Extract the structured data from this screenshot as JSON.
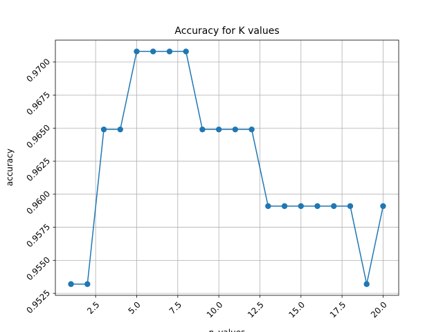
{
  "chart_data": {
    "type": "line",
    "title": "Accuracy for K values",
    "xlabel": "n_values",
    "ylabel": "accuracy",
    "x": [
      1,
      2,
      3,
      4,
      5,
      6,
      7,
      8,
      9,
      10,
      11,
      12,
      13,
      14,
      15,
      16,
      17,
      18,
      19,
      20
    ],
    "series": [
      {
        "values": [
          0.9532,
          0.9532,
          0.9649,
          0.9649,
          0.9708,
          0.9708,
          0.9708,
          0.9708,
          0.9649,
          0.9649,
          0.9649,
          0.9649,
          0.9591,
          0.9591,
          0.9591,
          0.9591,
          0.9591,
          0.9591,
          0.9532,
          0.9591
        ],
        "color": "#1f77b4",
        "marker": "circle"
      }
    ],
    "xticks": [
      2.5,
      5.0,
      7.5,
      10.0,
      12.5,
      15.0,
      17.5,
      20.0
    ],
    "xtick_labels": [
      "2.5",
      "5.0",
      "7.5",
      "10.0",
      "12.5",
      "15.0",
      "17.5",
      "20.0"
    ],
    "yticks": [
      0.9525,
      0.955,
      0.9575,
      0.96,
      0.9625,
      0.965,
      0.9675,
      0.97
    ],
    "ytick_labels": [
      "0.9525",
      "0.9550",
      "0.9575",
      "0.9600",
      "0.9625",
      "0.9650",
      "0.9675",
      "0.9700"
    ],
    "xlim": [
      0.05,
      20.95
    ],
    "ylim": [
      0.95235,
      0.97166
    ],
    "grid": true,
    "tick_label_rotation": 45
  }
}
